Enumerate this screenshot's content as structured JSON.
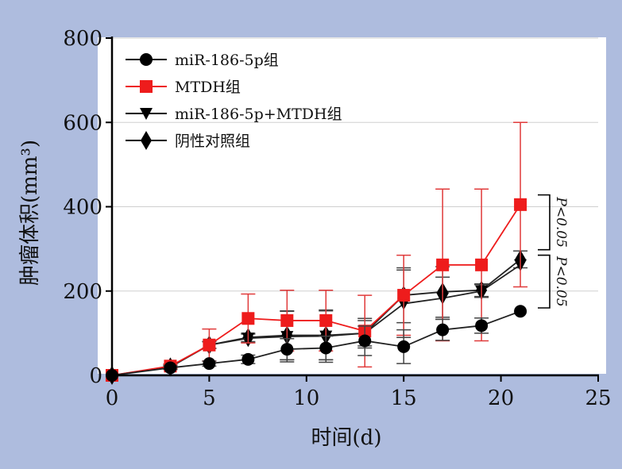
{
  "chart_data": {
    "type": "line",
    "xlabel": "时间(d)",
    "ylabel": "肿瘤体积(mm³)",
    "xlim": [
      0,
      25
    ],
    "ylim": [
      0,
      800
    ],
    "xticks": [
      "0",
      "5",
      "10",
      "15",
      "20",
      "25"
    ],
    "yticks": [
      "0",
      "200",
      "400",
      "600",
      "800"
    ],
    "grid": "horizontal",
    "legend_position": "top-left",
    "series": [
      {
        "name": "miR-186-5p组",
        "marker": "circle",
        "color": "#000000",
        "x": [
          0,
          3,
          5,
          7,
          9,
          11,
          13,
          15,
          17,
          19,
          21
        ],
        "y": [
          0,
          18,
          28,
          38,
          62,
          65,
          82,
          68,
          108,
          118,
          152
        ],
        "err": [
          0,
          4,
          6,
          10,
          25,
          28,
          35,
          40,
          25,
          18,
          0
        ]
      },
      {
        "name": "MTDH组",
        "marker": "square",
        "color": "#ee1c1c",
        "x": [
          0,
          3,
          5,
          7,
          9,
          11,
          13,
          15,
          17,
          19,
          21
        ],
        "y": [
          0,
          22,
          72,
          135,
          130,
          130,
          105,
          190,
          262,
          262,
          405
        ],
        "err": [
          0,
          5,
          38,
          58,
          72,
          72,
          85,
          95,
          180,
          180,
          195
        ]
      },
      {
        "name": "miR-186-5p+MTDH组",
        "marker": "triangle-down",
        "color": "#000000",
        "x": [
          0,
          3,
          5,
          7,
          9,
          11,
          13,
          15,
          17,
          19,
          21
        ],
        "y": [
          0,
          20,
          72,
          88,
          92,
          93,
          100,
          170,
          183,
          200,
          262
        ],
        "err": [
          0,
          4,
          8,
          10,
          60,
          62,
          35,
          80,
          50,
          15,
          0
        ]
      },
      {
        "name": "阴性对照组",
        "marker": "diamond",
        "color": "#000000",
        "x": [
          0,
          3,
          5,
          7,
          9,
          11,
          13,
          15,
          17,
          19,
          21
        ],
        "y": [
          0,
          20,
          72,
          90,
          95,
          95,
          100,
          190,
          198,
          202,
          275
        ],
        "err": [
          0,
          4,
          8,
          10,
          58,
          58,
          30,
          65,
          60,
          15,
          20
        ]
      }
    ],
    "annotations": [
      "P<0.05",
      "P<0.05"
    ]
  }
}
